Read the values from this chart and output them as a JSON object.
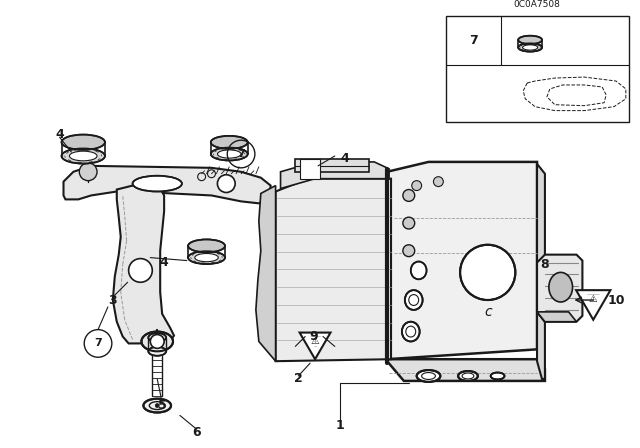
{
  "background_color": "#ffffff",
  "line_color": "#1a1a1a",
  "gray_color": "#999999",
  "figure_width": 6.4,
  "figure_height": 4.48,
  "diagram_code": "0C0A7508"
}
